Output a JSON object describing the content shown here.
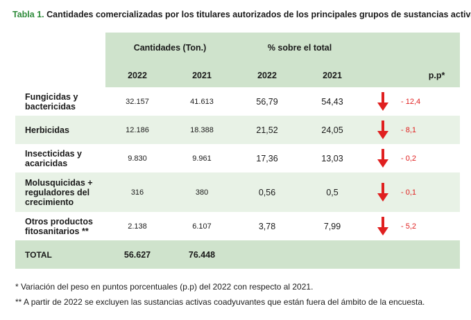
{
  "title": {
    "lead": "Tabla 1.",
    "text": "Cantidades comercializadas por los titulares autorizados de los principales grupos de sustancias activas"
  },
  "header": {
    "group1": "Cantidades (Ton.)",
    "group2": "% sobre el total",
    "y2022a": "2022",
    "y2021a": "2021",
    "y2022b": "2022",
    "y2021b": "2021",
    "pp": "p.p*"
  },
  "rows": [
    {
      "label": "Fungicidas y bactericidas",
      "q2022": "32.157",
      "q2021": "41.613",
      "p2022": "56,79",
      "p2021": "54,43",
      "pp": "- 12,4",
      "trend": "arrow-down-icon"
    },
    {
      "label": "Herbicidas",
      "q2022": "12.186",
      "q2021": "18.388",
      "p2022": "21,52",
      "p2021": "24,05",
      "pp": "- 8,1",
      "trend": "arrow-down-icon"
    },
    {
      "label": "Insecticidas y acaricidas",
      "q2022": "9.830",
      "q2021": "9.961",
      "p2022": "17,36",
      "p2021": "13,03",
      "pp": "- 0,2",
      "trend": "arrow-down-icon"
    },
    {
      "label": "Molusquicidas + reguladores del crecimiento",
      "q2022": "316",
      "q2021": "380",
      "p2022": "0,56",
      "p2021": "0,5",
      "pp": "- 0,1",
      "trend": "arrow-down-icon"
    },
    {
      "label": "Otros productos fitosanitarios **",
      "q2022": "2.138",
      "q2021": "6.107",
      "p2022": "3,78",
      "p2021": "7,99",
      "pp": "- 5,2",
      "trend": "arrow-down-icon"
    }
  ],
  "total": {
    "label": "TOTAL",
    "q2022": "56.627",
    "q2021": "76.448"
  },
  "footnotes": {
    "f1": "* Variación del peso en puntos porcentuales (p.p) del 2022 con respecto al 2021.",
    "f2": "** A partir de 2022 se excluyen las sustancias activas coadyuvantes que están fuera del ámbito de la encuesta."
  },
  "colors": {
    "accent_green": "#2e8b3a",
    "header_bg": "#cfe3cc",
    "row_shade": "#e8f2e6",
    "arrow_red": "#e02020"
  }
}
